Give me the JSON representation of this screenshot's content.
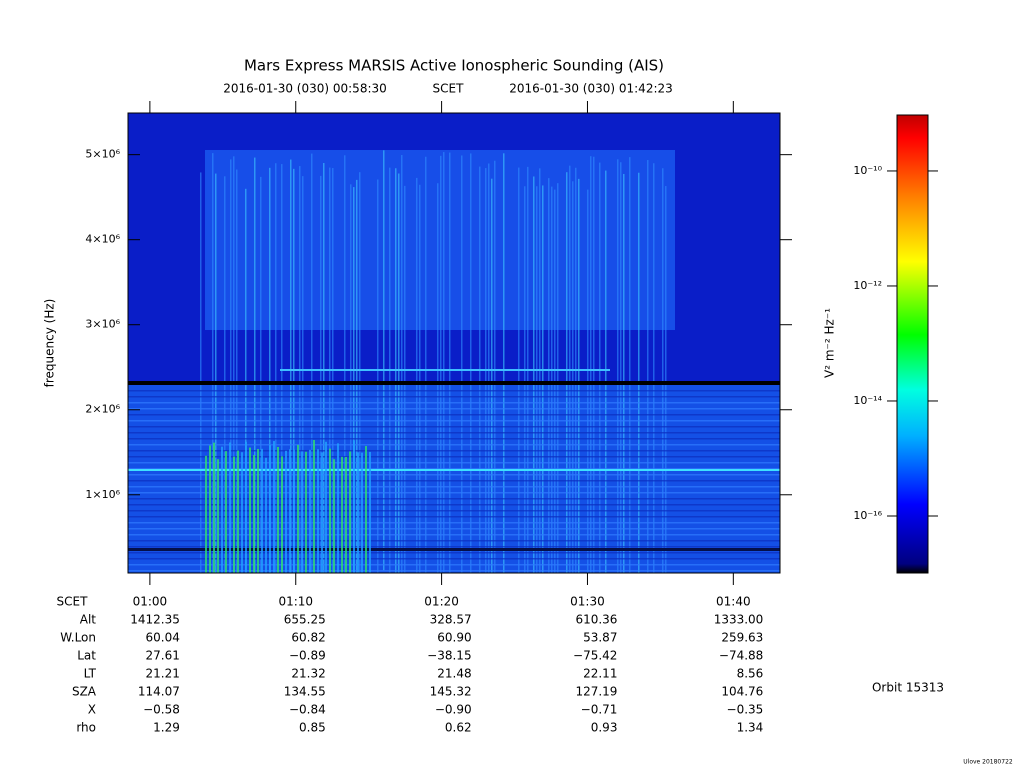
{
  "chart_data": {
    "type": "spectrogram",
    "title": "Mars Express MARSIS Active Ionospheric Sounding (AIS)",
    "subtitle": {
      "start": "2016-01-30 (030) 00:58:30",
      "label": "SCET",
      "end": "2016-01-30 (030) 01:42:23"
    },
    "ylabel": "frequency (Hz)",
    "ylim": [
      80000,
      5490000
    ],
    "yticks": [
      {
        "value": 1000000,
        "label": "1×10⁶"
      },
      {
        "value": 2000000,
        "label": "2×10⁶"
      },
      {
        "value": 3000000,
        "label": "3×10⁶"
      },
      {
        "value": 4000000,
        "label": "4×10⁶"
      },
      {
        "value": 5000000,
        "label": "5×10⁶"
      }
    ],
    "xlim": [
      58.5,
      103.2
    ],
    "xticks": [
      {
        "value": 60,
        "label": "01:00"
      },
      {
        "value": 70,
        "label": "01:10"
      },
      {
        "value": 80,
        "label": "01:20"
      },
      {
        "value": 90,
        "label": "01:30"
      },
      {
        "value": 100,
        "label": "01:40"
      }
    ],
    "colorbar": {
      "label": "V² m⁻² Hz⁻¹",
      "log": true,
      "lim": [
        1.02e-17,
        9.4e-10
      ],
      "ticks": [
        {
          "value": 1e-16,
          "label": "10⁻¹⁶"
        },
        {
          "value": 1e-14,
          "label": "10⁻¹⁴"
        },
        {
          "value": 1e-12,
          "label": "10⁻¹²"
        },
        {
          "value": 1e-10,
          "label": "10⁻¹⁰"
        }
      ]
    },
    "ephemeris": {
      "row_labels": [
        "SCET",
        "Alt",
        "W.Lon",
        "Lat",
        "LT",
        "SZA",
        "X",
        "rho"
      ],
      "rows": [
        [
          1412.35,
          655.25,
          328.57,
          610.36,
          1333.0
        ],
        [
          60.04,
          60.82,
          60.9,
          53.87,
          259.63
        ],
        [
          27.61,
          -0.89,
          -38.15,
          -75.42,
          -74.88
        ],
        [
          21.21,
          21.32,
          21.48,
          22.11,
          8.56
        ],
        [
          114.07,
          134.55,
          145.32,
          127.19,
          104.76
        ],
        [
          -0.58,
          -0.84,
          -0.9,
          -0.71,
          -0.35
        ],
        [
          1.29,
          0.85,
          0.62,
          0.93,
          1.34
        ]
      ],
      "row_value_labels": [
        [
          "1412.35",
          "655.25",
          "328.57",
          "610.36",
          "1333.00"
        ],
        [
          "60.04",
          "60.82",
          "60.90",
          "53.87",
          "259.63"
        ],
        [
          "27.61",
          "−0.89",
          "−38.15",
          "−75.42",
          "−74.88"
        ],
        [
          "21.21",
          "21.32",
          "21.48",
          "22.11",
          "8.56"
        ],
        [
          "114.07",
          "134.55",
          "145.32",
          "127.19",
          "104.76"
        ],
        [
          "−0.58",
          "−0.84",
          "−0.90",
          "−0.71",
          "−0.35"
        ],
        [
          "1.29",
          "0.85",
          "0.62",
          "0.93",
          "1.34"
        ]
      ]
    },
    "orbit": "Orbit 15313",
    "footer": "Ulove 20180722"
  }
}
